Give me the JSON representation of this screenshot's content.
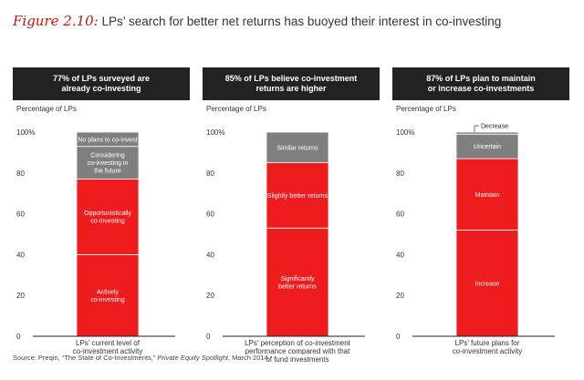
{
  "figure": {
    "label": "Figure 2.10:",
    "title": "LPs’ search for better net returns has buoyed their interest in co-investing"
  },
  "source": {
    "prefix": "Source: Preqin, “The State of Co-Investments,” ",
    "publication": "Private Equity Spotlight",
    "suffix": ", March 2014"
  },
  "colors": {
    "red": "#ee1c1c",
    "gray": "#7f7f7f",
    "header_bg": "#222222",
    "title_label": "#cc1111"
  },
  "chart_data": [
    {
      "type": "bar",
      "stacked": true,
      "header": [
        "77% of LPs surveyed are",
        "already co-investing"
      ],
      "ylabel": "Percentage of LPs",
      "yticks": [
        "100%",
        "80",
        "60",
        "40",
        "20",
        "0"
      ],
      "ylim": [
        0,
        100
      ],
      "xlabel": [
        "LPs’ current level of",
        "co-investment activity"
      ],
      "segments": [
        {
          "label": [
            "Actively",
            "co-investing"
          ],
          "value": 40,
          "color": "red"
        },
        {
          "label": [
            "Opportunistically",
            "co-investing"
          ],
          "value": 37,
          "color": "red"
        },
        {
          "label": [
            "Considering",
            "co-investing in",
            "the future"
          ],
          "value": 16,
          "color": "gray"
        },
        {
          "label": [
            "No plans to co-invest"
          ],
          "value": 7,
          "color": "gray"
        }
      ]
    },
    {
      "type": "bar",
      "stacked": true,
      "header": [
        "85% of LPs believe co-investment",
        "returns are higher"
      ],
      "ylabel": "Percentage of LPs",
      "yticks": [
        "100%",
        "80",
        "60",
        "40",
        "20",
        "0"
      ],
      "ylim": [
        0,
        100
      ],
      "xlabel": [
        "LPs’ perception of co-investment",
        "performance compared with that",
        "of fund investments"
      ],
      "segments": [
        {
          "label": [
            "Significantly",
            "better returns"
          ],
          "value": 53,
          "color": "red"
        },
        {
          "label": [
            "Slightly better returns"
          ],
          "value": 32,
          "color": "red"
        },
        {
          "label": [
            "Similar returns"
          ],
          "value": 15,
          "color": "gray"
        }
      ]
    },
    {
      "type": "bar",
      "stacked": true,
      "header": [
        "87% of LPs plan to maintain",
        "or increase co-investments"
      ],
      "ylabel": "Percentage of LPs",
      "yticks": [
        "100%",
        "80",
        "60",
        "40",
        "20",
        "0"
      ],
      "ylim": [
        0,
        100
      ],
      "xlabel": [
        "LPs’ future plans for",
        "co-investment activity"
      ],
      "segments": [
        {
          "label": [
            "Increase"
          ],
          "value": 52,
          "color": "red"
        },
        {
          "label": [
            "Maintain"
          ],
          "value": 35,
          "color": "red"
        },
        {
          "label": [
            "Uncertain"
          ],
          "value": 12,
          "color": "gray"
        },
        {
          "label": [
            "Decrease"
          ],
          "value": 1,
          "color": "gray",
          "callout": true
        }
      ]
    }
  ]
}
